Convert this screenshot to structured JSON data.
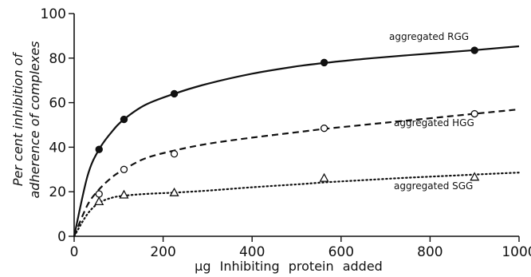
{
  "chart_data": {
    "type": "line",
    "xlabel": "μg Inhibiting protein added",
    "ylabel": [
      "Per cent inhibition of",
      "adherence of complexes"
    ],
    "xlim": [
      0,
      1000
    ],
    "ylim": [
      0,
      100
    ],
    "xticks": [
      "0",
      "200",
      "400",
      "600",
      "800",
      "1000"
    ],
    "yticks": [
      "0",
      "20",
      "40",
      "60",
      "80",
      "100"
    ],
    "grid": false,
    "series": [
      {
        "name": "aggregated RGG",
        "line_style": "solid",
        "marker": "filled-circle",
        "x": [
          56,
          112,
          225,
          562,
          900
        ],
        "y": [
          39,
          52.5,
          64,
          78,
          83.5
        ],
        "curve_x": [
          0,
          30,
          56,
          85,
          112,
          160,
          225,
          300,
          400,
          500,
          562,
          650,
          750,
          900,
          1000
        ],
        "curve_y": [
          0,
          27,
          39,
          47,
          52.5,
          59,
          64,
          68.5,
          73,
          76.3,
          77.8,
          79.6,
          81.3,
          83.6,
          85.3
        ]
      },
      {
        "name": "aggregated HGG",
        "line_style": "dashed",
        "marker": "open-circle",
        "x": [
          56,
          112,
          225,
          562,
          900
        ],
        "y": [
          19,
          30,
          37,
          48.5,
          55
        ],
        "curve_x": [
          0,
          30,
          56,
          85,
          112,
          160,
          225,
          300,
          400,
          500,
          562,
          650,
          750,
          900,
          1000
        ],
        "curve_y": [
          0,
          14,
          21,
          26.5,
          30,
          35,
          38.5,
          41.5,
          44.3,
          46.7,
          48.2,
          50,
          52,
          55,
          57
        ]
      },
      {
        "name": "aggregated SGG",
        "line_style": "dotted",
        "marker": "open-triangle",
        "x": [
          56,
          112,
          225,
          562,
          900
        ],
        "y": [
          15.5,
          18.5,
          19.5,
          26,
          26.5
        ],
        "curve_x": [
          0,
          30,
          56,
          85,
          112,
          160,
          225,
          300,
          400,
          500,
          562,
          650,
          750,
          900,
          1000
        ],
        "curve_y": [
          0,
          10,
          15,
          17.3,
          18.2,
          19,
          19.6,
          20.5,
          22,
          23.3,
          24.2,
          25.2,
          26.3,
          27.7,
          28.6
        ]
      }
    ]
  }
}
